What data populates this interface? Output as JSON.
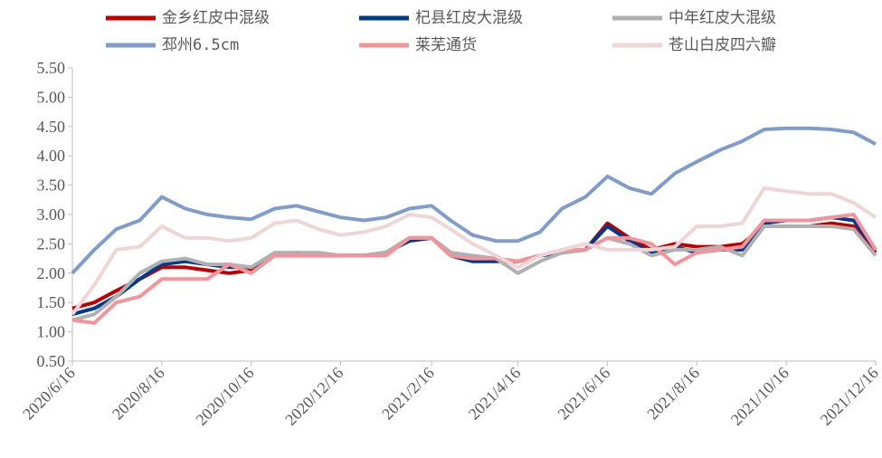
{
  "chart_data": {
    "type": "line",
    "x": [
      "2020/6/16",
      "2020/7/1",
      "2020/7/16",
      "2020/8/1",
      "2020/8/16",
      "2020/9/1",
      "2020/9/16",
      "2020/10/1",
      "2020/10/16",
      "2020/11/1",
      "2020/11/16",
      "2020/12/1",
      "2020/12/16",
      "2021/1/1",
      "2021/1/16",
      "2021/2/1",
      "2021/2/16",
      "2021/3/1",
      "2021/3/16",
      "2021/4/1",
      "2021/4/16",
      "2021/5/1",
      "2021/5/16",
      "2021/6/1",
      "2021/6/16",
      "2021/7/1",
      "2021/7/16",
      "2021/8/1",
      "2021/8/16",
      "2021/9/1",
      "2021/9/16",
      "2021/10/1",
      "2021/10/16",
      "2021/11/1",
      "2021/11/16",
      "2021/12/1",
      "2021/12/16"
    ],
    "series": [
      {
        "name": "金乡红皮中混级",
        "color": "#c00000",
        "values": [
          1.4,
          1.5,
          1.7,
          1.9,
          2.1,
          2.1,
          2.05,
          2.0,
          2.05,
          2.3,
          2.3,
          2.3,
          2.3,
          2.3,
          2.35,
          2.6,
          2.6,
          2.35,
          2.25,
          2.25,
          2.2,
          2.3,
          2.35,
          2.4,
          2.85,
          2.6,
          2.4,
          2.5,
          2.45,
          2.45,
          2.5,
          2.8,
          2.8,
          2.8,
          2.85,
          2.8,
          2.35
        ]
      },
      {
        "name": "杞县红皮大混级",
        "color": "#003a8c",
        "values": [
          1.3,
          1.4,
          1.6,
          1.9,
          2.15,
          2.2,
          2.15,
          2.1,
          2.1,
          2.3,
          2.35,
          2.3,
          2.3,
          2.3,
          2.35,
          2.55,
          2.6,
          2.3,
          2.2,
          2.2,
          2.2,
          2.3,
          2.35,
          2.4,
          2.8,
          2.55,
          2.35,
          2.45,
          2.35,
          2.4,
          2.4,
          2.85,
          2.9,
          2.9,
          2.95,
          2.9,
          2.4
        ]
      },
      {
        "name": "中年红皮大混级",
        "color": "#b0b0b0",
        "values": [
          1.2,
          1.3,
          1.6,
          2.0,
          2.2,
          2.25,
          2.15,
          2.15,
          2.1,
          2.35,
          2.35,
          2.35,
          2.3,
          2.3,
          2.35,
          2.6,
          2.6,
          2.35,
          2.3,
          2.25,
          2.0,
          2.2,
          2.35,
          2.4,
          2.6,
          2.5,
          2.3,
          2.4,
          2.4,
          2.45,
          2.3,
          2.8,
          2.8,
          2.8,
          2.8,
          2.75,
          2.3
        ]
      },
      {
        "name": "邳州6.5cm",
        "color": "#7f9ccc",
        "values": [
          2.0,
          2.4,
          2.75,
          2.9,
          3.3,
          3.1,
          3.0,
          2.95,
          2.92,
          3.1,
          3.15,
          3.05,
          2.95,
          2.9,
          2.95,
          3.1,
          3.15,
          2.9,
          2.65,
          2.55,
          2.55,
          2.7,
          3.1,
          3.3,
          3.65,
          3.45,
          3.35,
          3.7,
          3.9,
          4.1,
          4.25,
          4.45,
          4.47,
          4.47,
          4.45,
          4.4,
          4.2
        ]
      },
      {
        "name": "莱芜通货",
        "color": "#f4939a",
        "values": [
          1.2,
          1.15,
          1.5,
          1.6,
          1.9,
          1.9,
          1.9,
          2.15,
          2.0,
          2.3,
          2.3,
          2.3,
          2.3,
          2.3,
          2.3,
          2.6,
          2.6,
          2.3,
          2.25,
          2.25,
          2.2,
          2.3,
          2.4,
          2.4,
          2.6,
          2.6,
          2.5,
          2.15,
          2.35,
          2.4,
          2.45,
          2.9,
          2.9,
          2.9,
          2.95,
          3.0,
          2.4
        ]
      },
      {
        "name": "苍山白皮四六瓣",
        "color": "#efd5d5",
        "values": [
          1.3,
          1.8,
          2.4,
          2.45,
          2.8,
          2.6,
          2.6,
          2.55,
          2.6,
          2.85,
          2.9,
          2.75,
          2.65,
          2.7,
          2.8,
          3.0,
          2.95,
          2.75,
          2.5,
          2.3,
          2.1,
          2.3,
          2.4,
          2.5,
          2.4,
          2.4,
          2.4,
          2.45,
          2.8,
          2.8,
          2.85,
          3.45,
          3.4,
          3.35,
          3.35,
          3.2,
          2.95
        ]
      }
    ],
    "xlim": [
      "2020/6/16",
      "2021/12/16"
    ],
    "xticks": [
      "2020/6/16",
      "2020/8/16",
      "2020/10/16",
      "2020/12/16",
      "2021/2/16",
      "2021/4/16",
      "2021/6/16",
      "2021/8/16",
      "2021/10/16",
      "2021/12/16"
    ],
    "ylim": [
      0.5,
      5.5
    ],
    "yticks": [
      {
        "value": 0.5,
        "label": "0.50"
      },
      {
        "value": 1,
        "label": "1.00"
      },
      {
        "value": 1.5,
        "label": "1.50"
      },
      {
        "value": 2,
        "label": "2.00"
      },
      {
        "value": 2.5,
        "label": "2.50"
      },
      {
        "value": 3,
        "label": "3.00"
      },
      {
        "value": 3.5,
        "label": "3.50"
      },
      {
        "value": 4,
        "label": "4.00"
      },
      {
        "value": 4.5,
        "label": "4.50"
      },
      {
        "value": 5,
        "label": "5.00"
      },
      {
        "value": 5.5,
        "label": "5.50"
      }
    ]
  }
}
